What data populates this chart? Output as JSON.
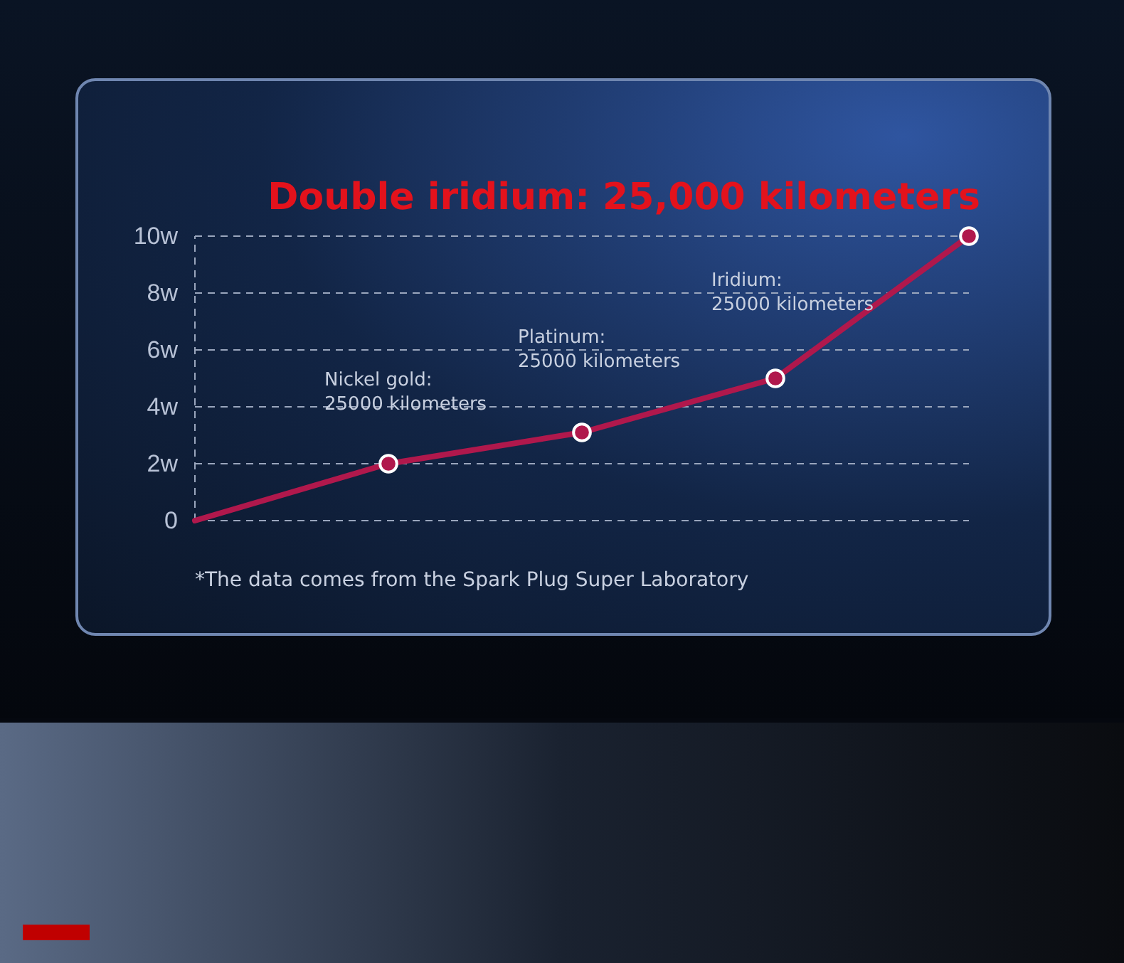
{
  "chart_data": {
    "type": "line",
    "title": "Double iridium: 25,000 kilometers",
    "categories": [
      null,
      null,
      null,
      null,
      null
    ],
    "series": [
      {
        "color": "#b0184c",
        "values": [
          0,
          2,
          3.1,
          5,
          10
        ]
      }
    ],
    "ylim": [
      0,
      10
    ],
    "yticks": [
      0,
      {
        "value": 2,
        "label": "2w"
      },
      {
        "value": 4,
        "label": "4w"
      },
      {
        "value": 6,
        "label": "6w"
      },
      {
        "value": 8,
        "label": "8w"
      },
      {
        "value": 10,
        "label": "10w"
      }
    ],
    "grid": "y",
    "marker": "circle",
    "line_style": "solid",
    "annotations": [
      "Nickel gold:\n25000 kilometers",
      "Platinum:\n25000 kilometers",
      "Iridium:\n25000 kilometers",
      "*The data comes from the Spark Plug Super Laboratory"
    ]
  }
}
